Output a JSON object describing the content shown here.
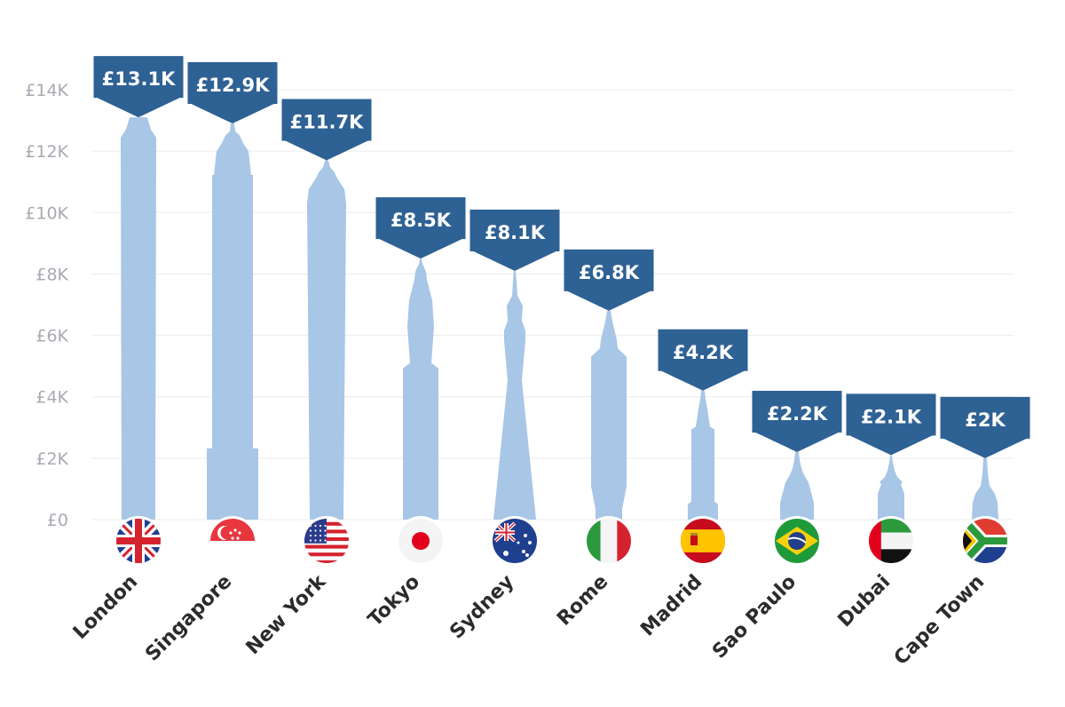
{
  "chart_data": {
    "type": "bar",
    "categories": [
      "London",
      "Singapore",
      "New York",
      "Tokyo",
      "Sydney",
      "Rome",
      "Madrid",
      "Sao Paulo",
      "Dubai",
      "Cape Town"
    ],
    "values": [
      13.1,
      12.9,
      11.7,
      8.5,
      8.1,
      6.8,
      4.2,
      2.2,
      2.1,
      2.0
    ],
    "value_labels": [
      "£13.1K",
      "£12.9K",
      "£11.7K",
      "£8.5K",
      "£8.1K",
      "£6.8K",
      "£4.2K",
      "£2.2K",
      "£2.1K",
      "£2K"
    ],
    "y_ticks": [
      0,
      2,
      4,
      6,
      8,
      10,
      12,
      14
    ],
    "y_tick_labels": [
      "£0",
      "£2K",
      "£4K",
      "£6K",
      "£8K",
      "£10K",
      "£12K",
      "£14K"
    ],
    "ylim": [
      0,
      14
    ],
    "grid": true,
    "flags": [
      "uk-flag",
      "singapore-flag",
      "usa-flag",
      "japan-flag",
      "australia-flag",
      "italy-flag",
      "spain-flag",
      "brazil-flag",
      "uae-flag",
      "south-africa-flag"
    ],
    "colors": {
      "bar": "#a8c6e6",
      "label_bg": "#2e6194",
      "label_text": "#ffffff",
      "axis_text": "#a9a9b3",
      "city_text": "#2b2b2b"
    }
  }
}
